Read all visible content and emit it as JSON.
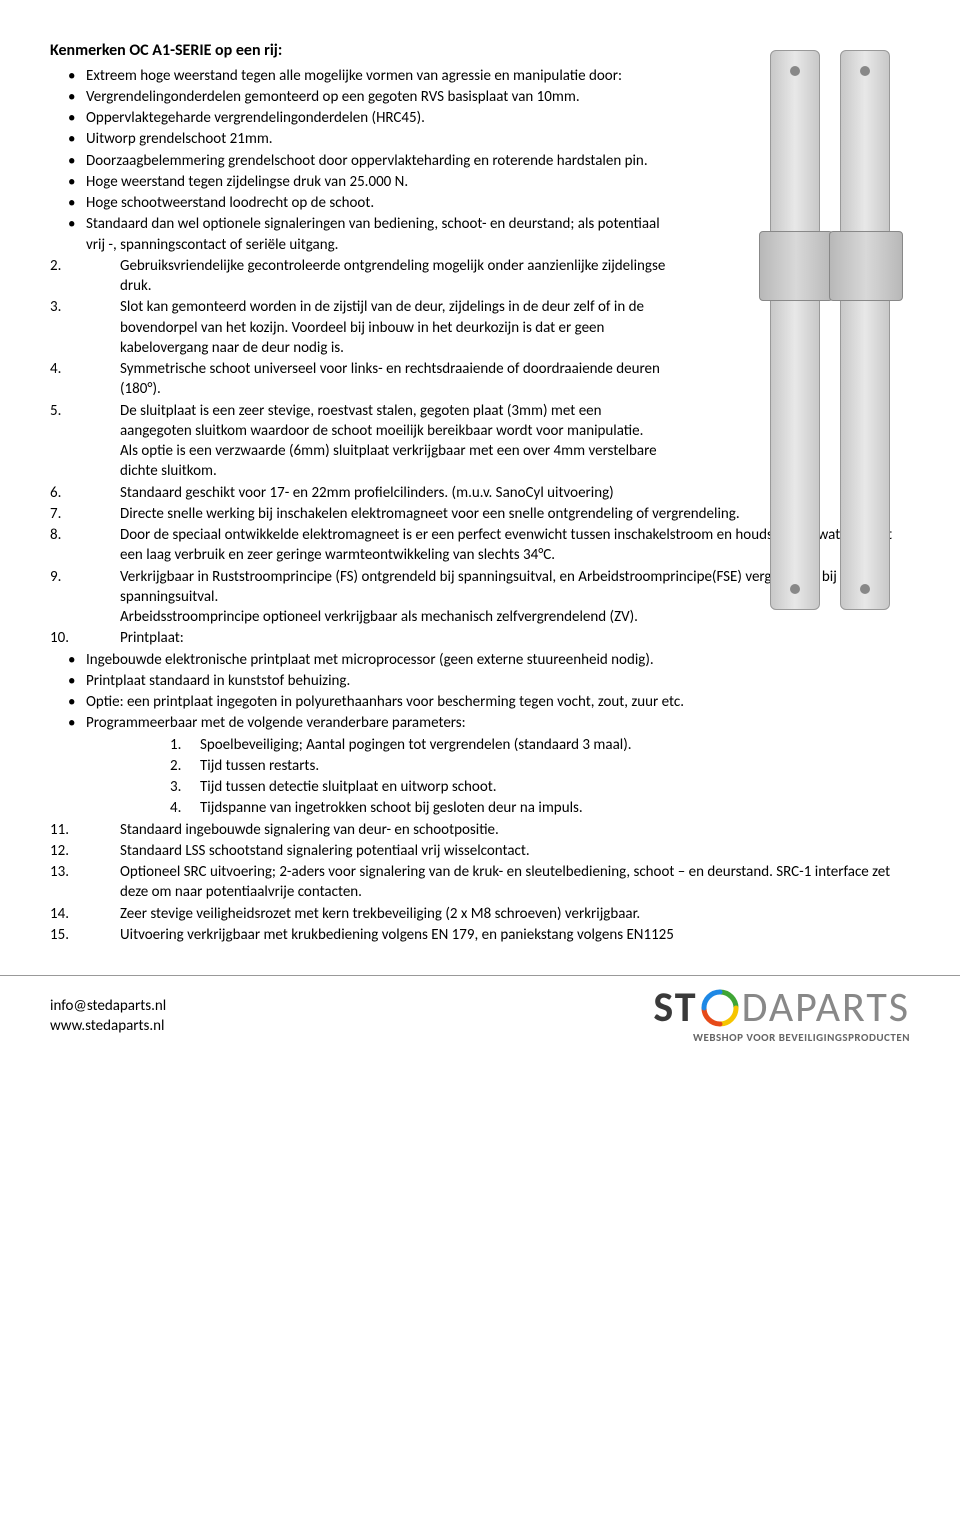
{
  "title": "Kenmerken OC A1-SERIE op een rij:",
  "bullets_top": [
    "Extreem hoge weerstand tegen alle mogelijke vormen van agressie en manipulatie door:",
    "Vergrendelingonderdelen gemonteerd op een gegoten RVS basisplaat van 10mm.",
    "Oppervlaktegeharde vergrendelingonderdelen (HRC45).",
    "Uitworp grendelschoot 21mm.",
    "Doorzaagbelemmering grendelschoot door oppervlakteharding en roterende hardstalen pin.",
    "Hoge weerstand tegen zijdelingse druk van 25.000 N.",
    "Hoge schootweerstand loodrecht op de schoot.",
    "Standaard dan wel optionele signaleringen van bediening, schoot- en deurstand; als potentiaal vrij -, spanningscontact of seriële uitgang."
  ],
  "numbered": [
    {
      "n": "2.",
      "t": "Gebruiksvriendelijke gecontroleerde ontgrendeling mogelijk onder aanzienlijke zijdelingse druk.",
      "w": false
    },
    {
      "n": "3.",
      "t": "Slot kan gemonteerd worden in de zijstijl van de deur, zijdelings in de deur zelf of in de bovendorpel  van het kozijn. Voordeel bij inbouw in het deurkozijn is dat er geen kabelovergang naar de deur nodig is.",
      "w": false
    },
    {
      "n": "4.",
      "t": "Symmetrische schoot universeel  voor links- en rechtsdraaiende of doordraaiende deuren (180°).",
      "w": false
    },
    {
      "n": "5.",
      "t": "De sluitplaat is een zeer stevige, roestvast stalen, gegoten plaat (3mm) met een aangegoten sluitkom waardoor de schoot moeilijk bereikbaar wordt voor manipulatie.\nAls optie is een verzwaarde (6mm) sluitplaat verkrijgbaar met een over 4mm verstelbare dichte sluitkom.",
      "w": false
    },
    {
      "n": "6.",
      "t": "Standaard geschikt voor 17- en 22mm profielcilinders. (m.u.v. SanoCyl uitvoering)",
      "w": false
    },
    {
      "n": "7.",
      "t": "Directe snelle werking bij inschakelen elektromagneet voor een snelle ontgrendeling of vergrendeling.",
      "w": true
    },
    {
      "n": "8.",
      "t": "Door de speciaal ontwikkelde elektromagneet is er een perfect evenwicht tussen inschakelstroom en houdstroom, wat leidt tot een laag verbruik en zeer geringe warmteontwikkeling van slechts 34°C.",
      "w": true
    },
    {
      "n": "9.",
      "t": "Verkrijgbaar in Ruststroomprincipe  (FS) ontgrendeld bij spanningsuitval, en Arbeidstroomprincipe(FSE)  vergrendeld bij spanningsuitval.\nArbeidsstroomprincipe optioneel verkrijgbaar als mechanisch zelfvergrendelend (ZV).",
      "w": true
    }
  ],
  "item10_label": "10.",
  "item10_title": "Printplaat:",
  "item10_bullets": [
    "Ingebouwde elektronische printplaat met microprocessor (geen externe stuureenheid nodig).",
    "Printplaat standaard in kunststof behuizing.",
    "Optie: een printplaat ingegoten in polyurethaanhars voor bescherming tegen vocht, zout, zuur etc.",
    "Programmeerbaar met de volgende veranderbare parameters:"
  ],
  "item10_sub": [
    {
      "n": "1.",
      "t": "Spoelbeveiliging; Aantal pogingen tot vergrendelen (standaard 3 maal)."
    },
    {
      "n": "2.",
      "t": "Tijd tussen restarts."
    },
    {
      "n": "3.",
      "t": "Tijd tussen detectie sluitplaat en uitworp schoot."
    },
    {
      "n": "4.",
      "t": "Tijdspanne van ingetrokken schoot bij gesloten deur na impuls."
    }
  ],
  "numbered_tail": [
    {
      "n": "11.",
      "t": "Standaard ingebouwde signalering van deur- en schootpositie."
    },
    {
      "n": "12.",
      "t": "Standaard LSS schootstand signalering potentiaal vrij wisselcontact."
    },
    {
      "n": "13.",
      "t": "Optioneel SRC uitvoering; 2-aders voor signalering van de kruk- en sleutelbediening, schoot – en deurstand. SRC-1 interface zet deze om naar potentiaalvrije contacten."
    },
    {
      "n": "14.",
      "t": "Zeer stevige veiligheidsrozet met kern trekbeveiliging (2 x M8 schroeven) verkrijgbaar."
    },
    {
      "n": "15.",
      "t": "Uitvoering verkrijgbaar met krukbediening volgens EN 179, en paniekstang volgens EN1125"
    }
  ],
  "footer": {
    "email": "info@stedaparts.nl",
    "web": "www.stedaparts.nl",
    "logo_bold": "ST",
    "logo_light": "DAPARTS",
    "tagline": "WEBSHOP VOOR BEVEILIGINGSPRODUCTEN"
  },
  "colors": {
    "text": "#000000",
    "logo_dark": "#3a3a3a",
    "logo_light": "#888888",
    "tagline": "#666666",
    "swoosh": [
      "#3fa535",
      "#f6c500",
      "#e64a19",
      "#1e88e5"
    ]
  }
}
